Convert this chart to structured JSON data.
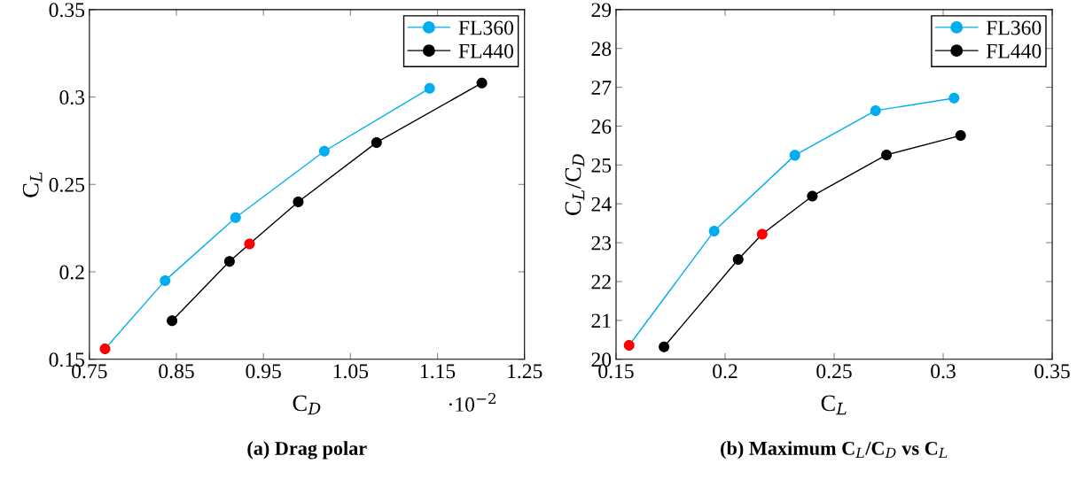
{
  "chart_data": [
    {
      "type": "line",
      "title": "(a) Drag polar",
      "xlabel": "C$_{D}$",
      "ylabel": "C$_{L}$",
      "annotations": [
        "·10$^{−2}$"
      ],
      "xlim": [
        0.75,
        1.25
      ],
      "xticks": [
        0.75,
        0.85,
        0.95,
        1.05,
        1.15,
        1.25
      ],
      "ylim": [
        0.15,
        0.35
      ],
      "yticks": [
        0.15,
        0.2,
        0.25,
        0.3,
        0.35
      ],
      "legend": "top right",
      "marker": "circle",
      "grid": false,
      "series": [
        {
          "name": "FL360",
          "color": "#00aeef",
          "colors": [
            "#ff0000",
            "#00aeef",
            "#00aeef",
            "#00aeef",
            "#00aeef"
          ],
          "x": [
            0.768,
            0.837,
            0.918,
            1.02,
            1.141
          ],
          "values": [
            0.156,
            0.195,
            0.231,
            0.269,
            0.305
          ]
        },
        {
          "name": "FL440",
          "color": "#000000",
          "colors": [
            "#000000",
            "#000000",
            "#ff0000",
            "#000000",
            "#000000",
            "#000000"
          ],
          "x": [
            0.845,
            0.911,
            0.934,
            0.99,
            1.08,
            1.201
          ],
          "values": [
            0.172,
            0.206,
            0.216,
            0.24,
            0.274,
            0.308
          ]
        }
      ]
    },
    {
      "type": "line",
      "title": "(b) Maximum C$_{L}$/C$_{D}$ vs C$_{L}$",
      "xlabel": "C$_{L}$",
      "ylabel": "C$_{L}$/C$_{D}$",
      "xlim": [
        0.15,
        0.35
      ],
      "xticks": [
        0.15,
        0.2,
        0.25,
        0.3,
        0.35
      ],
      "ylim": [
        20,
        29
      ],
      "yticks": [
        20,
        21,
        22,
        23,
        24,
        25,
        26,
        27,
        28,
        29
      ],
      "legend": "top right",
      "marker": "circle",
      "grid": false,
      "series": [
        {
          "name": "FL360",
          "color": "#00aeef",
          "colors": [
            "#ff0000",
            "#00aeef",
            "#00aeef",
            "#00aeef",
            "#00aeef"
          ],
          "x": [
            0.156,
            0.195,
            0.232,
            0.269,
            0.305
          ],
          "values": [
            20.36,
            23.3,
            25.25,
            26.4,
            26.72
          ]
        },
        {
          "name": "FL440",
          "color": "#000000",
          "colors": [
            "#000000",
            "#000000",
            "#ff0000",
            "#000000",
            "#000000",
            "#000000"
          ],
          "x": [
            0.172,
            0.206,
            0.217,
            0.24,
            0.274,
            0.308
          ],
          "values": [
            20.32,
            22.57,
            23.22,
            24.2,
            25.26,
            25.76
          ]
        }
      ]
    }
  ]
}
